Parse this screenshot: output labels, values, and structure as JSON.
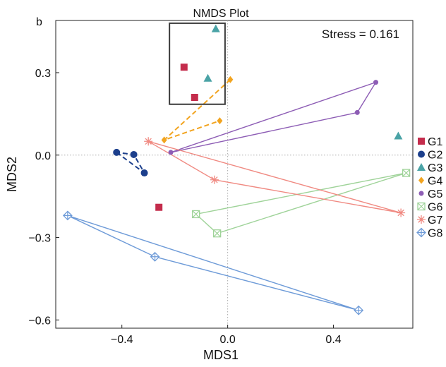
{
  "panel_label": "b",
  "chart_data": {
    "type": "scatter",
    "title": "NMDS Plot",
    "xlabel": "MDS1",
    "ylabel": "MDS2",
    "xlim": [
      -0.65,
      0.7
    ],
    "ylim": [
      -0.63,
      0.49
    ],
    "xticks": [
      -0.4,
      0.0,
      0.4
    ],
    "xtick_labels": [
      "−0.4",
      "0.0",
      "0.4"
    ],
    "yticks": [
      -0.6,
      -0.3,
      0.0,
      0.3
    ],
    "ytick_labels": [
      "−0.6",
      "−0.3",
      "0.0",
      "0.3"
    ],
    "zero_reference_lines": true,
    "annotation": "Stress = 0.161",
    "highlight_box": {
      "x": [
        -0.22,
        -0.01
      ],
      "y": [
        0.185,
        0.48
      ]
    },
    "legend_position": "right",
    "series": [
      {
        "name": "G1",
        "color": "#c42c4c",
        "marker": "square",
        "line": "none",
        "points": [
          [
            -0.165,
            0.32
          ],
          [
            -0.125,
            0.21
          ],
          [
            -0.26,
            -0.19
          ]
        ],
        "path": []
      },
      {
        "name": "G2",
        "color": "#1c3f8c",
        "marker": "circle",
        "line": "dashed",
        "points": [
          [
            -0.42,
            0.01
          ],
          [
            -0.355,
            0.002
          ],
          [
            -0.315,
            -0.065
          ]
        ],
        "path": [
          [
            -0.42,
            0.01
          ],
          [
            -0.315,
            -0.065
          ],
          [
            -0.355,
            0.002
          ],
          [
            -0.42,
            0.01
          ]
        ]
      },
      {
        "name": "G3",
        "color": "#4aa3a6",
        "marker": "triangle",
        "line": "none",
        "points": [
          [
            -0.045,
            0.46
          ],
          [
            -0.075,
            0.28
          ],
          [
            0.645,
            0.07
          ]
        ],
        "path": []
      },
      {
        "name": "G4",
        "color": "#f2a41f",
        "marker": "diamond",
        "line": "dashed",
        "points": [
          [
            0.01,
            0.275
          ],
          [
            -0.03,
            0.125
          ],
          [
            -0.24,
            0.055
          ]
        ],
        "path": [
          [
            0.01,
            0.275
          ],
          [
            -0.24,
            0.055
          ],
          [
            -0.03,
            0.125
          ]
        ]
      },
      {
        "name": "G5",
        "color": "#8d5db5",
        "marker": "circle-small",
        "line": "solid",
        "points": [
          [
            0.56,
            0.265
          ],
          [
            0.49,
            0.155
          ],
          [
            -0.215,
            0.01
          ]
        ],
        "path": [
          [
            -0.215,
            0.01
          ],
          [
            0.56,
            0.265
          ],
          [
            0.49,
            0.155
          ],
          [
            -0.215,
            0.01
          ]
        ]
      },
      {
        "name": "G6",
        "color": "#9fd399",
        "marker": "square-x",
        "line": "solid",
        "points": [
          [
            0.675,
            -0.065
          ],
          [
            -0.12,
            -0.215
          ],
          [
            -0.04,
            -0.285
          ]
        ],
        "path": [
          [
            0.675,
            -0.065
          ],
          [
            -0.12,
            -0.215
          ],
          [
            -0.04,
            -0.285
          ],
          [
            0.675,
            -0.065
          ]
        ]
      },
      {
        "name": "G7",
        "color": "#f08a82",
        "marker": "asterisk",
        "line": "solid",
        "points": [
          [
            -0.3,
            0.05
          ],
          [
            -0.05,
            -0.09
          ],
          [
            0.655,
            -0.21
          ]
        ],
        "path": [
          [
            -0.3,
            0.05
          ],
          [
            -0.05,
            -0.09
          ],
          [
            0.655,
            -0.21
          ],
          [
            -0.3,
            0.05
          ]
        ]
      },
      {
        "name": "G8",
        "color": "#6e9bd8",
        "marker": "diamond-plus",
        "line": "solid",
        "points": [
          [
            -0.605,
            -0.22
          ],
          [
            -0.275,
            -0.37
          ],
          [
            0.495,
            -0.565
          ]
        ],
        "path": [
          [
            -0.605,
            -0.22
          ],
          [
            -0.275,
            -0.37
          ],
          [
            0.495,
            -0.565
          ],
          [
            -0.605,
            -0.22
          ]
        ]
      }
    ]
  }
}
